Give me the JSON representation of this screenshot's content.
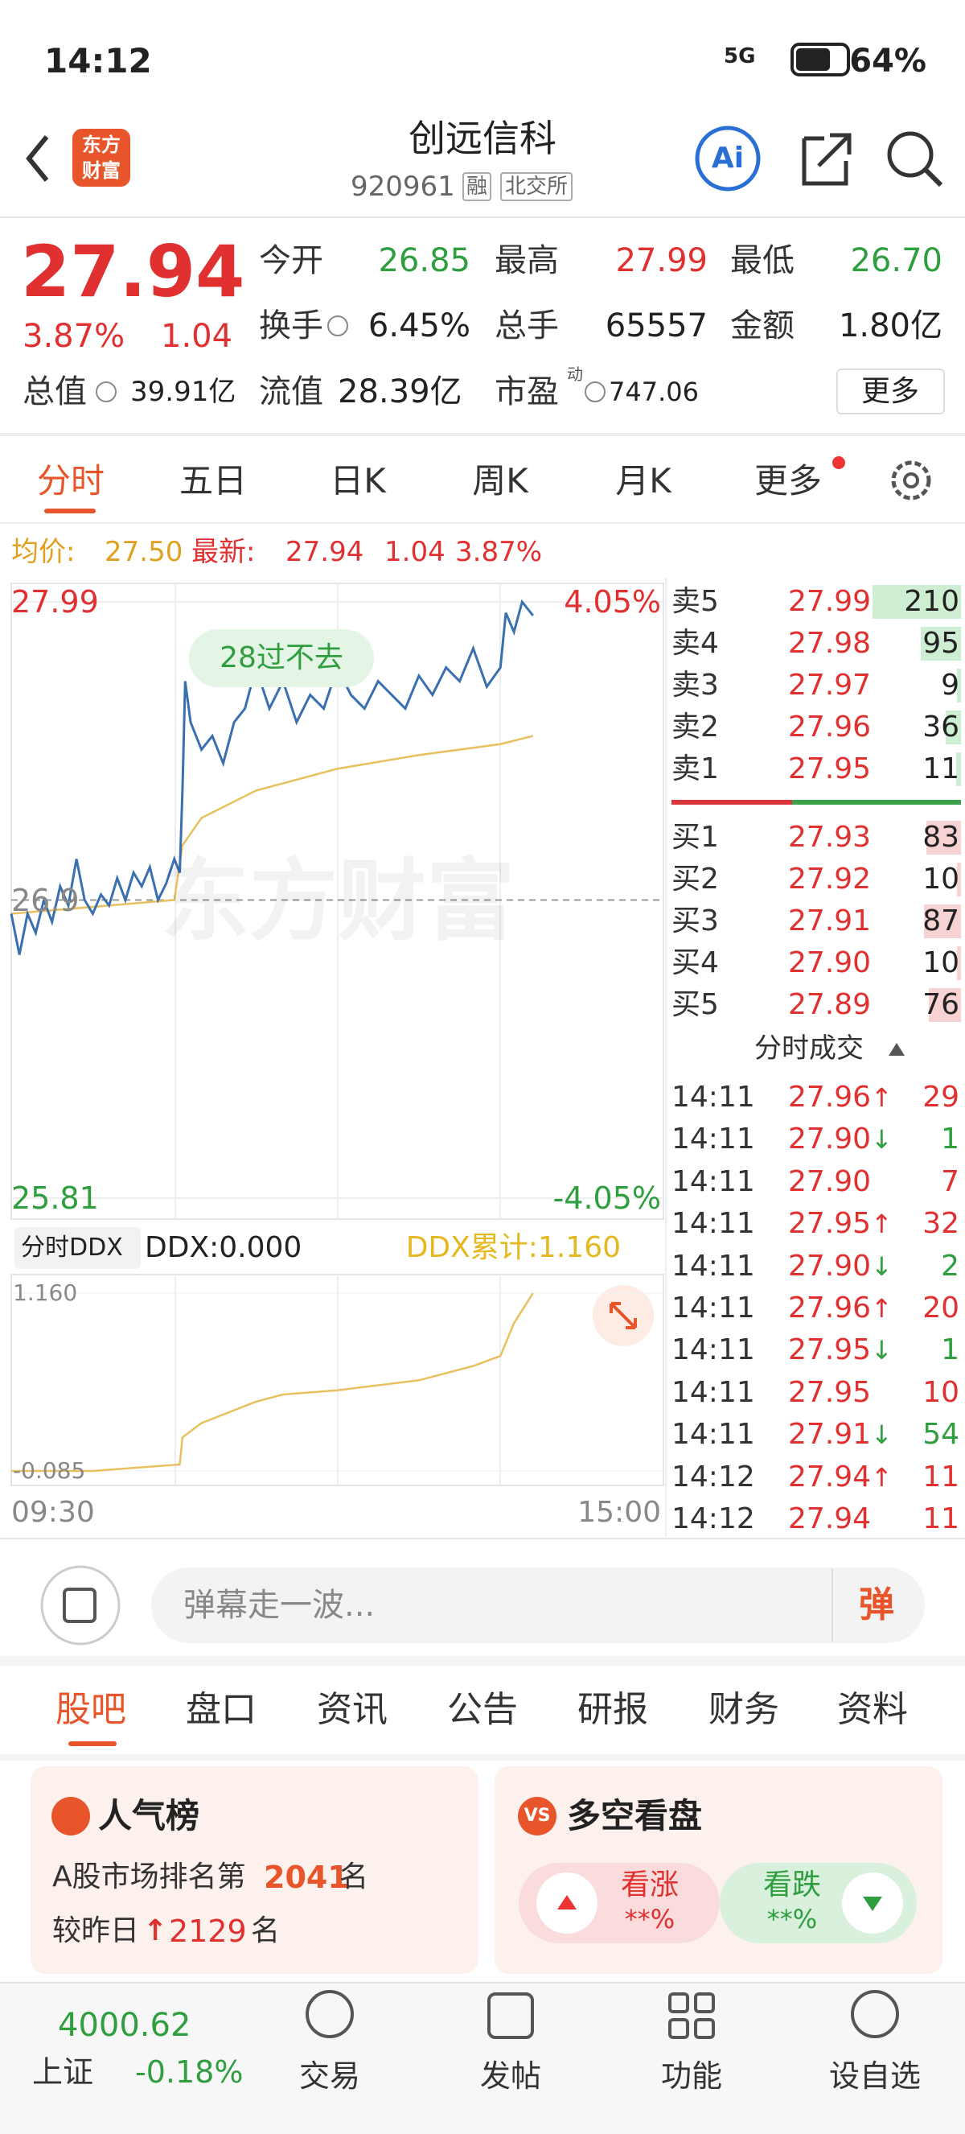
{
  "status_bar": {
    "time": "14:12",
    "network": "5G",
    "battery": "64%"
  },
  "header": {
    "logo": [
      "东方",
      "财富"
    ],
    "name": "创远信科",
    "code": "920961",
    "tags": [
      "融",
      "北交所"
    ],
    "ai": "Ai"
  },
  "quote": {
    "price": "27.94",
    "change_pct": "3.87%",
    "change": "1.04",
    "fields": [
      {
        "label": "今开",
        "value": "26.85"
      },
      {
        "label": "最高",
        "value": "27.99"
      },
      {
        "label": "最低",
        "value": "26.70"
      },
      {
        "label": "换手",
        "value": "6.45%"
      },
      {
        "label": "总手",
        "value": "65557"
      },
      {
        "label": "金额",
        "value": "1.80亿"
      },
      {
        "label": "总值",
        "value": "39.91亿"
      },
      {
        "label": "流值",
        "value": "28.39亿"
      },
      {
        "label": "市盈",
        "sup": "动",
        "value": "747.06"
      }
    ],
    "more": "更多"
  },
  "tabs": [
    "分时",
    "五日",
    "日K",
    "周K",
    "月K",
    "更多"
  ],
  "price_line": {
    "avg_label": "均价:",
    "avg": "27.50",
    "last_label": "最新:",
    "last": "27.94",
    "change": "1.04",
    "pct": "3.87%"
  },
  "intraday": {
    "type": "line",
    "annotation": "28过不去",
    "watermark": "东方财富",
    "xlim": [
      0,
      240
    ],
    "ylim": [
      25.81,
      27.99
    ],
    "yticks": [
      25.81,
      26.9,
      27.99
    ],
    "pct_labels": {
      "top": "4.05%",
      "bottom": "-4.05%"
    },
    "x_labels": [
      "09:30",
      "15:00"
    ],
    "price": {
      "color": "#3a6fb0",
      "x": [
        0,
        3,
        6,
        9,
        12,
        15,
        18,
        21,
        24,
        27,
        30,
        33,
        36,
        39,
        42,
        45,
        48,
        51,
        54,
        57,
        60,
        62,
        63,
        64,
        66,
        70,
        74,
        78,
        82,
        86,
        90,
        95,
        100,
        105,
        110,
        115,
        120,
        125,
        130,
        135,
        140,
        145,
        150,
        155,
        160,
        165,
        170,
        175,
        180,
        182,
        185,
        188,
        192
      ],
      "values": [
        26.85,
        26.7,
        26.85,
        26.78,
        26.9,
        26.82,
        26.95,
        26.88,
        27.05,
        26.9,
        26.85,
        26.92,
        26.88,
        26.98,
        26.9,
        27.0,
        26.95,
        27.02,
        26.9,
        26.96,
        27.05,
        27.0,
        27.3,
        27.7,
        27.55,
        27.45,
        27.5,
        27.4,
        27.55,
        27.6,
        27.75,
        27.6,
        27.7,
        27.55,
        27.65,
        27.6,
        27.75,
        27.65,
        27.6,
        27.7,
        27.65,
        27.6,
        27.72,
        27.65,
        27.75,
        27.7,
        27.82,
        27.68,
        27.75,
        27.95,
        27.88,
        27.99,
        27.94
      ]
    },
    "average": {
      "color": "#e8c060",
      "x": [
        0,
        60,
        63,
        70,
        90,
        120,
        150,
        180,
        192
      ],
      "values": [
        26.85,
        26.9,
        27.1,
        27.2,
        27.3,
        27.38,
        27.43,
        27.47,
        27.5
      ]
    }
  },
  "ddx": {
    "selector": "分时DDX",
    "ddx": "DDX:0.000",
    "cumulative_label": "DDX累计:1.160",
    "ylim": [
      -0.085,
      1.16
    ],
    "yticks": [
      {
        "value": 1.16,
        "label": "1.160"
      },
      -0.085
    ],
    "line": {
      "color": "#e8c060",
      "x": [
        0,
        30,
        62,
        63,
        70,
        90,
        100,
        120,
        150,
        170,
        180,
        185,
        190,
        192
      ],
      "values": [
        -0.085,
        -0.085,
        -0.04,
        0.15,
        0.25,
        0.4,
        0.45,
        0.48,
        0.55,
        0.65,
        0.72,
        0.95,
        1.1,
        1.16
      ]
    }
  },
  "order_book": {
    "asks": [
      {
        "label": "卖5",
        "price": "27.99",
        "volume": 210
      },
      {
        "label": "卖4",
        "price": "27.98",
        "volume": 95
      },
      {
        "label": "卖3",
        "price": "27.97",
        "volume": 9
      },
      {
        "label": "卖2",
        "price": "27.96",
        "volume": 36
      },
      {
        "label": "卖1",
        "price": "27.95",
        "volume": 11
      }
    ],
    "bids": [
      {
        "label": "买1",
        "price": "27.93",
        "volume": 83
      },
      {
        "label": "买2",
        "price": "27.92",
        "volume": 10
      },
      {
        "label": "买3",
        "price": "27.91",
        "volume": 87
      },
      {
        "label": "买4",
        "price": "27.90",
        "volume": 10
      },
      {
        "label": "买5",
        "price": "27.89",
        "volume": 76
      }
    ]
  },
  "trades": {
    "title": "分时成交",
    "rows": [
      {
        "time": "14:11",
        "price": "27.96",
        "arrow": "↑",
        "side": "buy",
        "volume": 29
      },
      {
        "time": "14:11",
        "price": "27.90",
        "arrow": "↓",
        "side": "sell",
        "volume": 1
      },
      {
        "time": "14:11",
        "price": "27.90",
        "side": "buy",
        "volume": 7
      },
      {
        "time": "14:11",
        "price": "27.95",
        "arrow": "↑",
        "side": "buy",
        "volume": 32
      },
      {
        "time": "14:11",
        "price": "27.90",
        "arrow": "↓",
        "side": "sell",
        "volume": 2
      },
      {
        "time": "14:11",
        "price": "27.96",
        "arrow": "↑",
        "side": "buy",
        "volume": 20
      },
      {
        "time": "14:11",
        "price": "27.95",
        "arrow": "↓",
        "side": "sell",
        "volume": 1
      },
      {
        "time": "14:11",
        "price": "27.95",
        "side": "buy",
        "volume": 10
      },
      {
        "time": "14:11",
        "price": "27.91",
        "arrow": "↓",
        "side": "sell",
        "volume": 54
      },
      {
        "time": "14:12",
        "price": "27.94",
        "arrow": "↑",
        "side": "buy",
        "volume": 11
      },
      {
        "time": "14:12",
        "price": "27.94",
        "side": "buy",
        "volume": 11
      }
    ]
  },
  "comment": {
    "placeholder": "弹幕走一波...",
    "button": "弹"
  },
  "sub_tabs": [
    "股吧",
    "盘口",
    "资讯",
    "公告",
    "研报",
    "财务",
    "资料"
  ],
  "cards": {
    "popularity": {
      "title": "人气榜",
      "rank_prefix": "A股市场排名第",
      "rank": "2041",
      "rank_suffix": "名",
      "change_prefix": "较昨日",
      "arrow": "↑",
      "change": "2129",
      "change_suffix": "名"
    },
    "bull_bear": {
      "icon": "VS",
      "title": "多空看盘",
      "up": "看涨",
      "up_value": "**%",
      "down": "看跌",
      "down_value": "**%"
    }
  },
  "bottom_bar": {
    "index_value": "4000.62",
    "index_name": "上证",
    "index_pct": "-0.18%",
    "nav": [
      "交易",
      "发帖",
      "功能",
      "设自选"
    ]
  }
}
